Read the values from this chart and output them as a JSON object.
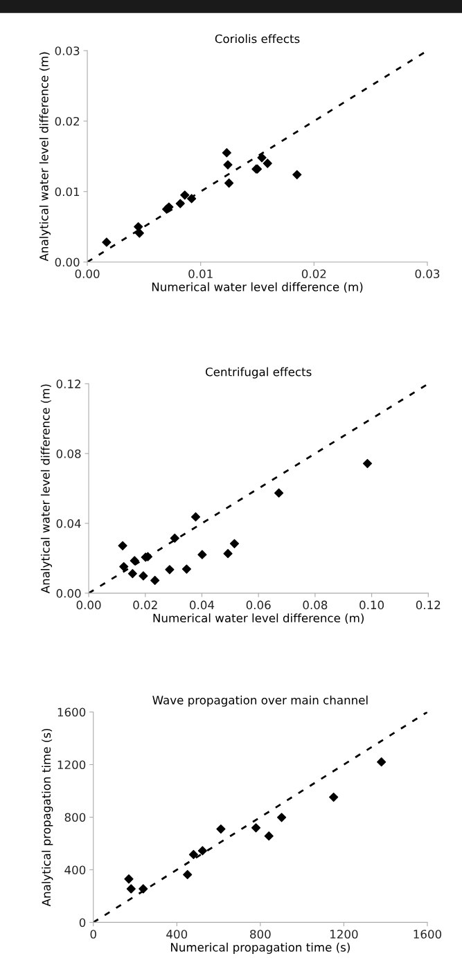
{
  "chart_data": [
    {
      "type": "scatter",
      "title": "Coriolis effects",
      "xlabel": "Numerical water level difference (m)",
      "ylabel": "Analytical water level difference (m)",
      "xlim": [
        0,
        0.03
      ],
      "ylim": [
        0,
        0.03
      ],
      "xticks": [
        {
          "value": 0,
          "label": "0.00"
        },
        {
          "value": 0.01,
          "label": "0.01"
        },
        {
          "value": 0.02,
          "label": "0.02"
        },
        {
          "value": 0.03,
          "label": "0.03"
        }
      ],
      "yticks": [
        {
          "value": 0,
          "label": "0.00"
        },
        {
          "value": 0.01,
          "label": "0.01"
        },
        {
          "value": 0.02,
          "label": "0.02"
        },
        {
          "value": 0.03,
          "label": "0.03"
        }
      ],
      "grid": false,
      "series": [
        {
          "color": "#000000",
          "marker": "diamond",
          "x": [
            0.0017,
            0.0045,
            0.0046,
            0.007,
            0.0072,
            0.0082,
            0.0086,
            0.0092,
            0.0123,
            0.0124,
            0.0125,
            0.0149,
            0.015,
            0.0154,
            0.0159,
            0.0185
          ],
          "values": [
            0.0028,
            0.005,
            0.0041,
            0.0075,
            0.0078,
            0.0083,
            0.0095,
            0.009,
            0.0155,
            0.0138,
            0.0112,
            0.0132,
            0.0132,
            0.0148,
            0.014,
            0.0124
          ]
        },
        {
          "type": "line",
          "color": "#000000",
          "marker": "none",
          "line_style": "dashed",
          "x": [
            0,
            0.03
          ],
          "values": [
            0,
            0.03
          ]
        }
      ]
    },
    {
      "type": "scatter",
      "title": "Centrifugal effects",
      "xlabel": "Numerical water level difference (m)",
      "ylabel": "Analytical water level difference (m)",
      "xlim": [
        0,
        0.12
      ],
      "ylim": [
        0,
        0.12
      ],
      "xticks": [
        {
          "value": 0,
          "label": "0.00"
        },
        {
          "value": 0.02,
          "label": "0.02"
        },
        {
          "value": 0.04,
          "label": "0.04"
        },
        {
          "value": 0.06,
          "label": "0.06"
        },
        {
          "value": 0.08,
          "label": "0.08"
        },
        {
          "value": 0.1,
          "label": "0.10"
        },
        {
          "value": 0.12,
          "label": "0.12"
        }
      ],
      "yticks": [
        {
          "value": 0,
          "label": "0.00"
        },
        {
          "value": 0.04,
          "label": "0.04"
        },
        {
          "value": 0.08,
          "label": "0.08"
        },
        {
          "value": 0.12,
          "label": "0.12"
        }
      ],
      "grid": false,
      "series": [
        {
          "color": "#000000",
          "marker": "diamond",
          "x": [
            0.012,
            0.0124,
            0.0155,
            0.0162,
            0.0193,
            0.0201,
            0.0209,
            0.0234,
            0.0286,
            0.0304,
            0.0346,
            0.0378,
            0.0401,
            0.0492,
            0.0515,
            0.0672,
            0.0985
          ],
          "values": [
            0.0272,
            0.0152,
            0.0112,
            0.0186,
            0.0099,
            0.0206,
            0.0209,
            0.0073,
            0.0135,
            0.0315,
            0.0138,
            0.0437,
            0.0221,
            0.0227,
            0.0284,
            0.0574,
            0.0743
          ]
        },
        {
          "type": "line",
          "color": "#000000",
          "marker": "none",
          "line_style": "dashed",
          "x": [
            0,
            0.12
          ],
          "values": [
            0,
            0.12
          ]
        }
      ]
    },
    {
      "type": "scatter",
      "title": "Wave propagation over main channel",
      "xlabel": "Numerical propagation time (s)",
      "ylabel": "Analytical propagation time (s)",
      "xlim": [
        0,
        1600
      ],
      "ylim": [
        0,
        1600
      ],
      "xticks": [
        0,
        400,
        800,
        1200,
        1600
      ],
      "yticks": [
        0,
        400,
        800,
        1200,
        1600
      ],
      "grid": false,
      "series": [
        {
          "color": "#000000",
          "marker": "diamond",
          "x": [
            170,
            181,
            239,
            451,
            480,
            523,
            611,
            779,
            841,
            902,
            1151,
            1380
          ],
          "values": [
            330,
            255,
            255,
            363,
            516,
            545,
            710,
            719,
            657,
            798,
            952,
            1220
          ]
        },
        {
          "type": "line",
          "color": "#000000",
          "marker": "none",
          "line_style": "dashed",
          "x": [
            0,
            1600
          ],
          "values": [
            0,
            1600
          ]
        }
      ]
    }
  ]
}
